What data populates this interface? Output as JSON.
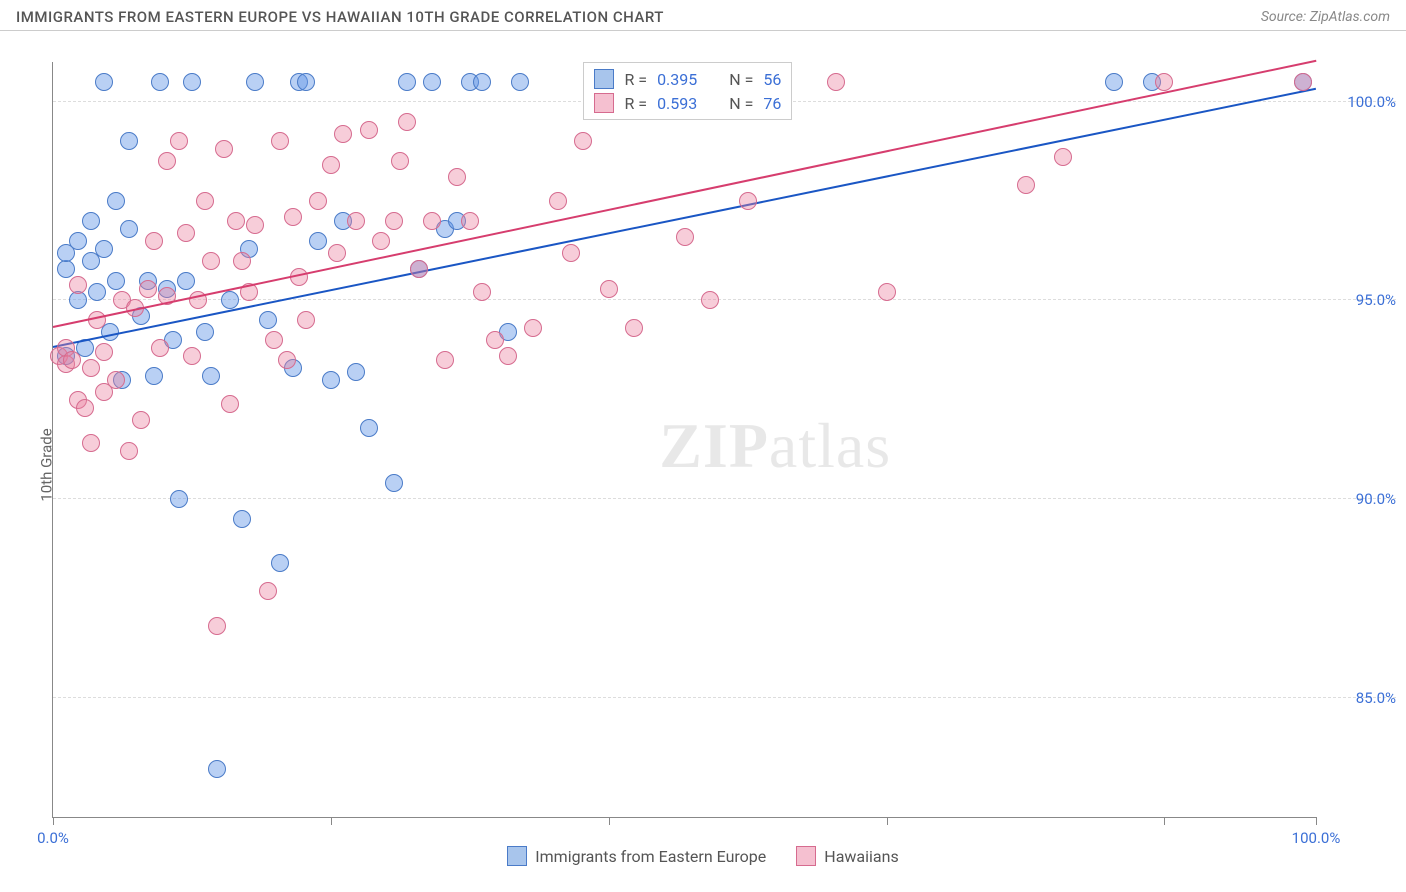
{
  "title": "IMMIGRANTS FROM EASTERN EUROPE VS HAWAIIAN 10TH GRADE CORRELATION CHART",
  "source": "Source: ZipAtlas.com",
  "ylabel": "10th Grade",
  "watermark_bold": "ZIP",
  "watermark_light": "atlas",
  "chart": {
    "type": "scatter",
    "background_color": "#ffffff",
    "grid_color": "#dddddd",
    "axis_color": "#888888",
    "xlim": [
      0,
      100
    ],
    "ylim": [
      82,
      101
    ],
    "xtick_positions": [
      0,
      22,
      44,
      66,
      88,
      100
    ],
    "xtick_labels": {
      "0": "0.0%",
      "100": "100.0%"
    },
    "ytick_positions": [
      85,
      90,
      95,
      100
    ],
    "ytick_labels": {
      "85": "85.0%",
      "90": "90.0%",
      "95": "95.0%",
      "100": "100.0%"
    },
    "tick_label_color": "#3b6fd6",
    "tick_label_fontsize": 15,
    "marker_radius": 9,
    "marker_opacity": 0.55,
    "series": [
      {
        "name": "Immigrants from Eastern Europe",
        "color_fill": "rgba(100,150,230,0.45)",
        "color_stroke": "#4a7bc8",
        "swatch_fill": "#a8c5ec",
        "swatch_border": "#4a7bc8",
        "R": "0.395",
        "N": "56",
        "trend": {
          "x1": 0,
          "y1": 93.8,
          "x2": 100,
          "y2": 100.3,
          "color": "#1a56c4",
          "width": 2
        },
        "points": [
          [
            1,
            95.8
          ],
          [
            1,
            96.2
          ],
          [
            1,
            93.6
          ],
          [
            2,
            96.5
          ],
          [
            2,
            95.0
          ],
          [
            2.5,
            93.8
          ],
          [
            3,
            97.0
          ],
          [
            3,
            96.0
          ],
          [
            3.5,
            95.2
          ],
          [
            4,
            100.5
          ],
          [
            4,
            96.3
          ],
          [
            4.5,
            94.2
          ],
          [
            5,
            97.5
          ],
          [
            5,
            95.5
          ],
          [
            5.5,
            93.0
          ],
          [
            6,
            96.8
          ],
          [
            6,
            99.0
          ],
          [
            7,
            94.6
          ],
          [
            7.5,
            95.5
          ],
          [
            8,
            93.1
          ],
          [
            8.5,
            100.5
          ],
          [
            9,
            95.3
          ],
          [
            9.5,
            94.0
          ],
          [
            10,
            90.0
          ],
          [
            10.5,
            95.5
          ],
          [
            11,
            100.5
          ],
          [
            12,
            94.2
          ],
          [
            12.5,
            93.1
          ],
          [
            13,
            83.2
          ],
          [
            14,
            95.0
          ],
          [
            15,
            89.5
          ],
          [
            15.5,
            96.3
          ],
          [
            16,
            100.5
          ],
          [
            17,
            94.5
          ],
          [
            18,
            88.4
          ],
          [
            19,
            93.3
          ],
          [
            19.5,
            100.5
          ],
          [
            20,
            100.5
          ],
          [
            21,
            96.5
          ],
          [
            22,
            93.0
          ],
          [
            23,
            97.0
          ],
          [
            24,
            93.2
          ],
          [
            25,
            91.8
          ],
          [
            27,
            90.4
          ],
          [
            28,
            100.5
          ],
          [
            29,
            95.8
          ],
          [
            30,
            100.5
          ],
          [
            31,
            96.8
          ],
          [
            32,
            97.0
          ],
          [
            33,
            100.5
          ],
          [
            34,
            100.5
          ],
          [
            36,
            94.2
          ],
          [
            37,
            100.5
          ],
          [
            84,
            100.5
          ],
          [
            87,
            100.5
          ],
          [
            99,
            100.5
          ]
        ]
      },
      {
        "name": "Hawaiians",
        "color_fill": "rgba(235,130,160,0.40)",
        "color_stroke": "#d66b8f",
        "swatch_fill": "#f5c0d0",
        "swatch_border": "#d66b8f",
        "R": "0.593",
        "N": "76",
        "trend": {
          "x1": 0,
          "y1": 94.3,
          "x2": 100,
          "y2": 101.0,
          "color": "#d63d6e",
          "width": 2
        },
        "points": [
          [
            0.5,
            93.6
          ],
          [
            1,
            93.8
          ],
          [
            1,
            93.4
          ],
          [
            1.5,
            93.5
          ],
          [
            2,
            95.4
          ],
          [
            2,
            92.5
          ],
          [
            2.5,
            92.3
          ],
          [
            3,
            93.3
          ],
          [
            3,
            91.4
          ],
          [
            3.5,
            94.5
          ],
          [
            4,
            93.7
          ],
          [
            4,
            92.7
          ],
          [
            5,
            93.0
          ],
          [
            5.5,
            95.0
          ],
          [
            6,
            91.2
          ],
          [
            6.5,
            94.8
          ],
          [
            7,
            92.0
          ],
          [
            7.5,
            95.3
          ],
          [
            8,
            96.5
          ],
          [
            8.5,
            93.8
          ],
          [
            9,
            95.1
          ],
          [
            9,
            98.5
          ],
          [
            10,
            99.0
          ],
          [
            10.5,
            96.7
          ],
          [
            11,
            93.6
          ],
          [
            11.5,
            95.0
          ],
          [
            12,
            97.5
          ],
          [
            12.5,
            96.0
          ],
          [
            13,
            86.8
          ],
          [
            13.5,
            98.8
          ],
          [
            14,
            92.4
          ],
          [
            14.5,
            97.0
          ],
          [
            15,
            96.0
          ],
          [
            15.5,
            95.2
          ],
          [
            16,
            96.9
          ],
          [
            17,
            87.7
          ],
          [
            17.5,
            94.0
          ],
          [
            18,
            99.0
          ],
          [
            18.5,
            93.5
          ],
          [
            19,
            97.1
          ],
          [
            19.5,
            95.6
          ],
          [
            20,
            94.5
          ],
          [
            21,
            97.5
          ],
          [
            22,
            98.4
          ],
          [
            22.5,
            96.2
          ],
          [
            23,
            99.2
          ],
          [
            24,
            97.0
          ],
          [
            25,
            99.3
          ],
          [
            26,
            96.5
          ],
          [
            27,
            97.0
          ],
          [
            27.5,
            98.5
          ],
          [
            28,
            99.5
          ],
          [
            29,
            95.8
          ],
          [
            30,
            97.0
          ],
          [
            31,
            93.5
          ],
          [
            32,
            98.1
          ],
          [
            33,
            97.0
          ],
          [
            34,
            95.2
          ],
          [
            35,
            94.0
          ],
          [
            36,
            93.6
          ],
          [
            38,
            94.3
          ],
          [
            40,
            97.5
          ],
          [
            41,
            96.2
          ],
          [
            42,
            99.0
          ],
          [
            44,
            95.3
          ],
          [
            46,
            94.3
          ],
          [
            49,
            100.5
          ],
          [
            50,
            96.6
          ],
          [
            52,
            95.0
          ],
          [
            55,
            97.5
          ],
          [
            62,
            100.5
          ],
          [
            66,
            95.2
          ],
          [
            77,
            97.9
          ],
          [
            80,
            98.6
          ],
          [
            88,
            100.5
          ],
          [
            99,
            100.5
          ]
        ]
      }
    ]
  },
  "legend_labels": {
    "R": "R =",
    "N": "N ="
  }
}
